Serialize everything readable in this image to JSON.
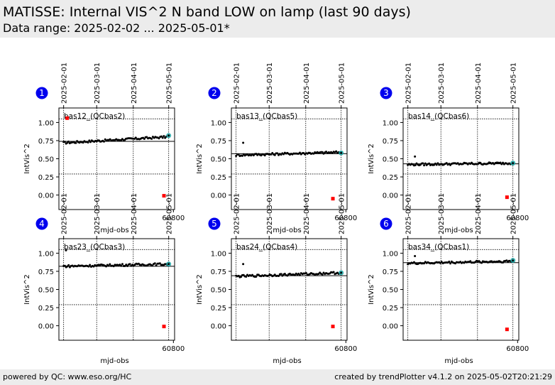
{
  "header": {
    "title": "MATISSE: Internal VIS^2 N band LOW on lamp (last 90 days)",
    "subtitle": "Data range: 2025-02-02 ... 2025-05-01*"
  },
  "footer": {
    "left": "powered by QC: www.eso.org/HC",
    "right": "created by trendPlotter v4.1.2 on 2025-05-02T20:21:29"
  },
  "chart_data": [
    {
      "type": "scatter",
      "index": "1",
      "label": "bas12_(QCbas2)",
      "xlabel": "mjd-obs",
      "ylabel": "IntVis^2",
      "xlim": [
        60703,
        60801
      ],
      "ylim": [
        -0.2,
        1.2
      ],
      "x_ticks": [
        60800
      ],
      "x_tick_labels": [
        "60800"
      ],
      "y_ticks": [
        0.0,
        0.25,
        0.5,
        0.75,
        1.0
      ],
      "y_tick_labels": [
        "0.00",
        "0.25",
        "0.50",
        "0.75",
        "1.00"
      ],
      "date_ticks": [
        "2025-02-01",
        "2025-03-01",
        "2025-04-01",
        "2025-05-01"
      ],
      "date_tick_mjd": [
        60707,
        60735,
        60766,
        60796
      ],
      "series": [
        {
          "role": "data",
          "color": "#000000",
          "x_start": 60707,
          "x_end": 60794,
          "y_start": 0.72,
          "y_end": 0.8,
          "count": 85
        },
        {
          "role": "outlier",
          "color": "#000000",
          "x": [
            60710
          ],
          "y": [
            1.06
          ]
        },
        {
          "role": "latest",
          "color": "#1fa6a6",
          "x": [
            60796
          ],
          "y": [
            0.82
          ]
        },
        {
          "role": "flagged",
          "color": "#ff0000",
          "x": [
            60792,
            60710
          ],
          "y": [
            -0.01,
            1.06
          ]
        }
      ],
      "reference_line": 0.74,
      "threshold_lines": [
        1.05,
        0.29
      ]
    },
    {
      "type": "scatter",
      "index": "2",
      "label": "bas13_(QCbas5)",
      "xlabel": "mjd-obs",
      "ylabel": "IntVis^2",
      "xlim": [
        60703,
        60801
      ],
      "ylim": [
        -0.2,
        1.2
      ],
      "x_ticks": [
        60800
      ],
      "x_tick_labels": [
        "60800"
      ],
      "y_ticks": [
        0.0,
        0.25,
        0.5,
        0.75,
        1.0
      ],
      "y_tick_labels": [
        "0.00",
        "0.25",
        "0.50",
        "0.75",
        "1.00"
      ],
      "date_ticks": [
        "2025-02-01",
        "2025-03-01",
        "2025-04-01",
        "2025-05-01"
      ],
      "date_tick_mjd": [
        60707,
        60735,
        60766,
        60796
      ],
      "series": [
        {
          "role": "data",
          "color": "#000000",
          "x_start": 60707,
          "x_end": 60796,
          "y_start": 0.55,
          "y_end": 0.59,
          "count": 85
        },
        {
          "role": "outlier",
          "color": "#000000",
          "x": [
            60713
          ],
          "y": [
            0.72
          ]
        },
        {
          "role": "latest",
          "color": "#1fa6a6",
          "x": [
            60796
          ],
          "y": [
            0.58
          ]
        },
        {
          "role": "flagged",
          "color": "#ff0000",
          "x": [
            60789
          ],
          "y": [
            -0.05
          ]
        }
      ],
      "reference_line": 0.57,
      "threshold_lines": [
        1.05,
        0.29
      ]
    },
    {
      "type": "scatter",
      "index": "3",
      "label": "bas14_(QCbas6)",
      "xlabel": "mjd-obs",
      "ylabel": "IntVis^2",
      "xlim": [
        60703,
        60801
      ],
      "ylim": [
        -0.2,
        1.2
      ],
      "x_ticks": [
        60800
      ],
      "x_tick_labels": [
        "60800"
      ],
      "y_ticks": [
        0.0,
        0.25,
        0.5,
        0.75,
        1.0
      ],
      "y_tick_labels": [
        "0.00",
        "0.25",
        "0.50",
        "0.75",
        "1.00"
      ],
      "date_ticks": [
        "2025-02-01",
        "2025-03-01",
        "2025-04-01",
        "2025-05-01"
      ],
      "date_tick_mjd": [
        60707,
        60735,
        60766,
        60796
      ],
      "series": [
        {
          "role": "data",
          "color": "#000000",
          "x_start": 60707,
          "x_end": 60796,
          "y_start": 0.42,
          "y_end": 0.44,
          "count": 85
        },
        {
          "role": "outlier",
          "color": "#000000",
          "x": [
            60713
          ],
          "y": [
            0.53
          ]
        },
        {
          "role": "latest",
          "color": "#1fa6a6",
          "x": [
            60796
          ],
          "y": [
            0.44
          ]
        },
        {
          "role": "flagged",
          "color": "#ff0000",
          "x": [
            60791
          ],
          "y": [
            -0.03
          ]
        }
      ],
      "reference_line": 0.43,
      "threshold_lines": [
        1.05,
        0.29
      ]
    },
    {
      "type": "scatter",
      "index": "4",
      "label": "bas23_(QCbas3)",
      "xlabel": "mjd-obs",
      "ylabel": "IntVis^2",
      "xlim": [
        60703,
        60801
      ],
      "ylim": [
        -0.2,
        1.2
      ],
      "x_ticks": [
        60800
      ],
      "x_tick_labels": [
        "60800"
      ],
      "y_ticks": [
        0.0,
        0.25,
        0.5,
        0.75,
        1.0
      ],
      "y_tick_labels": [
        "0.00",
        "0.25",
        "0.50",
        "0.75",
        "1.00"
      ],
      "date_ticks": [
        "2025-02-01",
        "2025-03-01",
        "2025-04-01",
        "2025-05-01"
      ],
      "date_tick_mjd": [
        60707,
        60735,
        60766,
        60796
      ],
      "series": [
        {
          "role": "data",
          "color": "#000000",
          "x_start": 60707,
          "x_end": 60796,
          "y_start": 0.82,
          "y_end": 0.85,
          "count": 85
        },
        {
          "role": "outlier",
          "color": "#000000",
          "x": [
            60709
          ],
          "y": [
            1.04
          ]
        },
        {
          "role": "latest",
          "color": "#1fa6a6",
          "x": [
            60796
          ],
          "y": [
            0.85
          ]
        },
        {
          "role": "flagged",
          "color": "#ff0000",
          "x": [
            60792
          ],
          "y": [
            -0.01
          ]
        }
      ],
      "reference_line": 0.82,
      "threshold_lines": [
        1.05,
        0.29
      ]
    },
    {
      "type": "scatter",
      "index": "5",
      "label": "bas24_(QCbas4)",
      "xlabel": "mjd-obs",
      "ylabel": "IntVis^2",
      "xlim": [
        60703,
        60801
      ],
      "ylim": [
        -0.2,
        1.2
      ],
      "x_ticks": [
        60800
      ],
      "x_tick_labels": [
        "60800"
      ],
      "y_ticks": [
        0.0,
        0.25,
        0.5,
        0.75,
        1.0
      ],
      "y_tick_labels": [
        "0.00",
        "0.25",
        "0.50",
        "0.75",
        "1.00"
      ],
      "date_ticks": [
        "2025-02-01",
        "2025-03-01",
        "2025-04-01",
        "2025-05-01"
      ],
      "date_tick_mjd": [
        60707,
        60735,
        60766,
        60796
      ],
      "series": [
        {
          "role": "data",
          "color": "#000000",
          "x_start": 60707,
          "x_end": 60796,
          "y_start": 0.68,
          "y_end": 0.73,
          "count": 85
        },
        {
          "role": "outlier",
          "color": "#000000",
          "x": [
            60713
          ],
          "y": [
            0.85
          ]
        },
        {
          "role": "latest",
          "color": "#1fa6a6",
          "x": [
            60796
          ],
          "y": [
            0.73
          ]
        },
        {
          "role": "flagged",
          "color": "#ff0000",
          "x": [
            60789
          ],
          "y": [
            -0.01
          ]
        }
      ],
      "reference_line": 0.69,
      "threshold_lines": [
        1.05,
        0.29
      ]
    },
    {
      "type": "scatter",
      "index": "6",
      "label": "bas34_(QCbas1)",
      "xlabel": "mjd-obs",
      "ylabel": "IntVis^2",
      "xlim": [
        60703,
        60801
      ],
      "ylim": [
        -0.2,
        1.2
      ],
      "x_ticks": [
        60800
      ],
      "x_tick_labels": [
        "60800"
      ],
      "y_ticks": [
        0.0,
        0.25,
        0.5,
        0.75,
        1.0
      ],
      "y_tick_labels": [
        "0.00",
        "0.25",
        "0.50",
        "0.75",
        "1.00"
      ],
      "date_ticks": [
        "2025-02-01",
        "2025-03-01",
        "2025-04-01",
        "2025-05-01"
      ],
      "date_tick_mjd": [
        60707,
        60735,
        60766,
        60796
      ],
      "series": [
        {
          "role": "data",
          "color": "#000000",
          "x_start": 60707,
          "x_end": 60796,
          "y_start": 0.86,
          "y_end": 0.89,
          "count": 85
        },
        {
          "role": "outlier",
          "color": "#000000",
          "x": [
            60713
          ],
          "y": [
            0.96
          ]
        },
        {
          "role": "latest",
          "color": "#1fa6a6",
          "x": [
            60796
          ],
          "y": [
            0.9
          ]
        },
        {
          "role": "flagged",
          "color": "#ff0000",
          "x": [
            60791
          ],
          "y": [
            -0.05
          ]
        }
      ],
      "reference_line": 0.87,
      "threshold_lines": [
        1.05,
        0.29
      ]
    }
  ]
}
